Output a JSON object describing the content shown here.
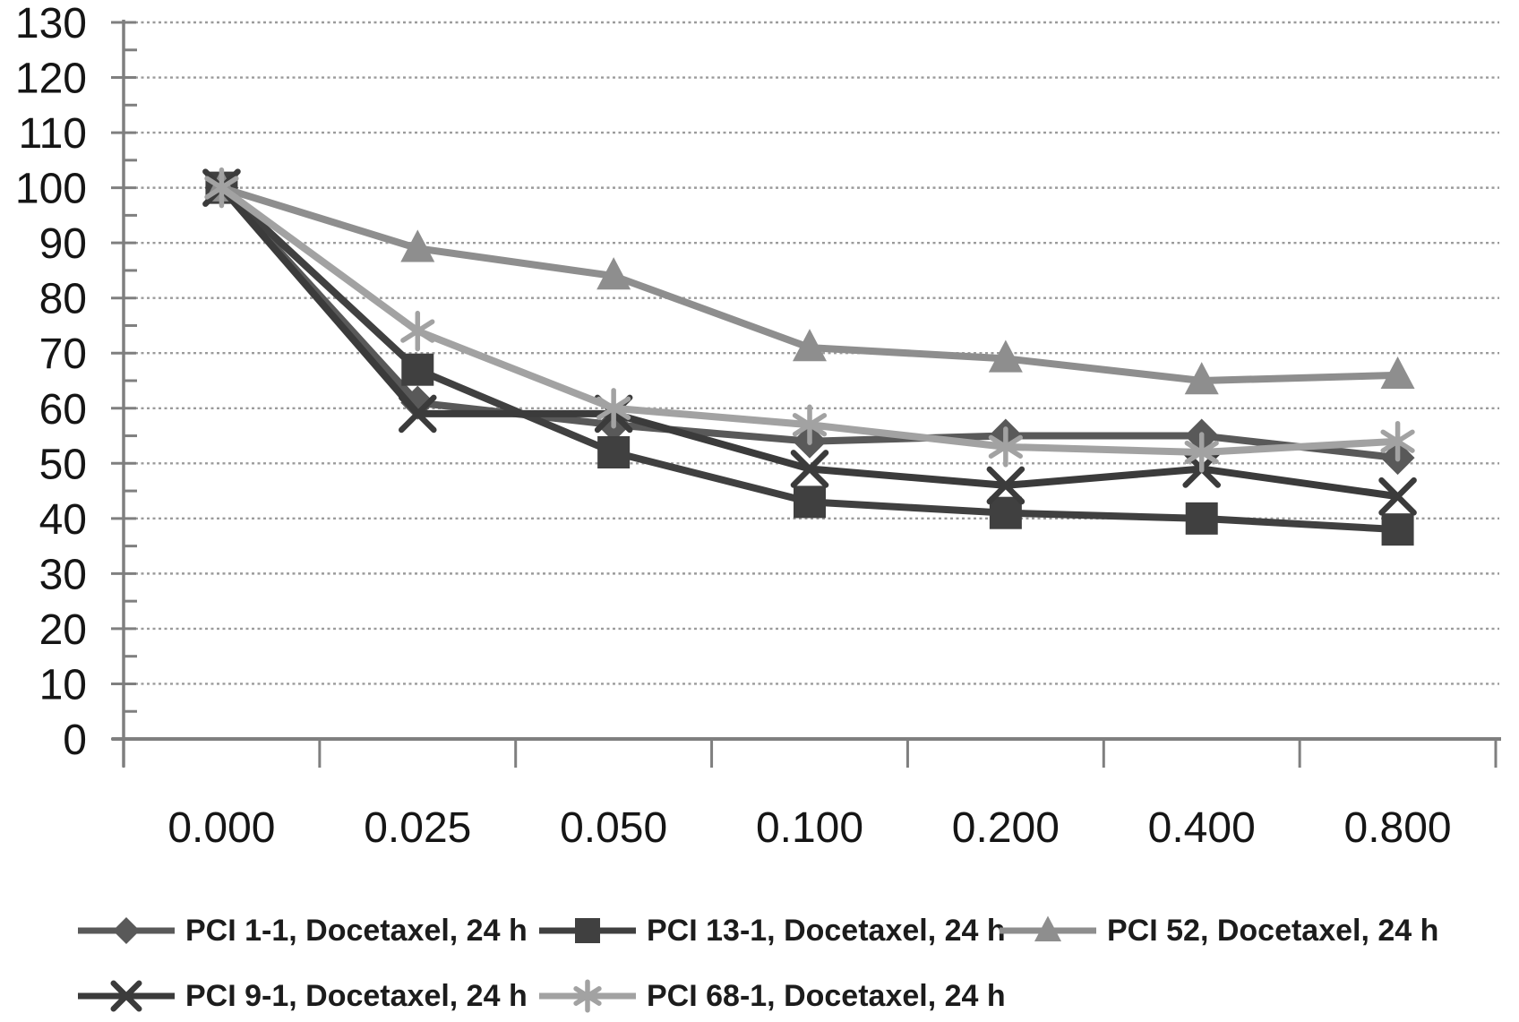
{
  "chart_data": {
    "type": "line",
    "title": "",
    "xlabel": "",
    "ylabel": "",
    "categories": [
      "0.000",
      "0.025",
      "0.050",
      "0.100",
      "0.200",
      "0.400",
      "0.800"
    ],
    "series": [
      {
        "name": "PCI 1-1, Docetaxel, 24 h",
        "marker": "diamond",
        "color": "#595959",
        "values": [
          100,
          61,
          57,
          54,
          55,
          55,
          51
        ]
      },
      {
        "name": "PCI 13-1, Docetaxel, 24 h",
        "marker": "square",
        "color": "#404040",
        "values": [
          100,
          67,
          52,
          43,
          41,
          40,
          38
        ]
      },
      {
        "name": "PCI 52, Docetaxel, 24 h",
        "marker": "triangle",
        "color": "#8e8e8e",
        "values": [
          100,
          89,
          84,
          71,
          69,
          65,
          66
        ]
      },
      {
        "name": "PCI 9-1, Docetaxel, 24 h",
        "marker": "x",
        "color": "#3b3b3b",
        "values": [
          100,
          59,
          59,
          49,
          46,
          49,
          44
        ]
      },
      {
        "name": "PCI 68-1, Docetaxel, 24 h",
        "marker": "asterisk",
        "color": "#a2a2a2",
        "values": [
          100,
          74,
          60,
          57,
          53,
          52,
          54
        ]
      }
    ],
    "ylim": [
      0,
      130
    ],
    "y_ticks": [
      0,
      10,
      20,
      30,
      40,
      50,
      60,
      70,
      80,
      90,
      100,
      110,
      120,
      130
    ],
    "y_minor_step": 5,
    "grid": "horizontal-dotted",
    "legend_position": "bottom",
    "legend_rows": [
      [
        0,
        1,
        2
      ],
      [
        3,
        4
      ]
    ],
    "colors": {
      "axis": "#7f7f7f",
      "grid": "#9b9b9b",
      "text": "#151515"
    }
  }
}
